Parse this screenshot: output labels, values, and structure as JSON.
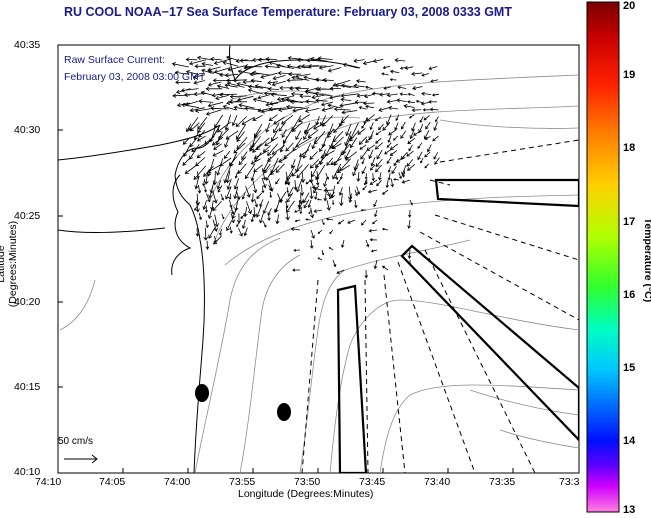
{
  "title": "RU COOL  NOAA−17  Sea Surface Temperature:  February 03, 2008 0333 GMT",
  "current_legend": {
    "line1": "Raw Surface Current:",
    "line2": "February 03, 2008 03:00 GMT"
  },
  "scale_arrow_label": "50 cm/s",
  "axes": {
    "xlabel": "Longitude (Degrees:Minutes)",
    "ylabel": "Latitude (Degrees:Minutes)",
    "xticks": [
      "74:10",
      "74:05",
      "74:00",
      "73:55",
      "73:50",
      "73:45",
      "73:40",
      "73:35",
      "73:3"
    ],
    "yticks": [
      "40:35",
      "40:30",
      "40:25",
      "40:20",
      "40:15",
      "40:10"
    ]
  },
  "colorbar": {
    "label": "Temperature (°C)",
    "ticks": [
      "20",
      "19",
      "18",
      "17",
      "16",
      "15",
      "14",
      "13"
    ],
    "range": [
      13,
      20
    ]
  },
  "colors": {
    "title": "#1a1a8c",
    "contour": "#8c8c8c",
    "coast": "#000000"
  },
  "icons": {
    "scale_arrow": "right-arrow-icon",
    "current_vectors": "arrow-field"
  }
}
